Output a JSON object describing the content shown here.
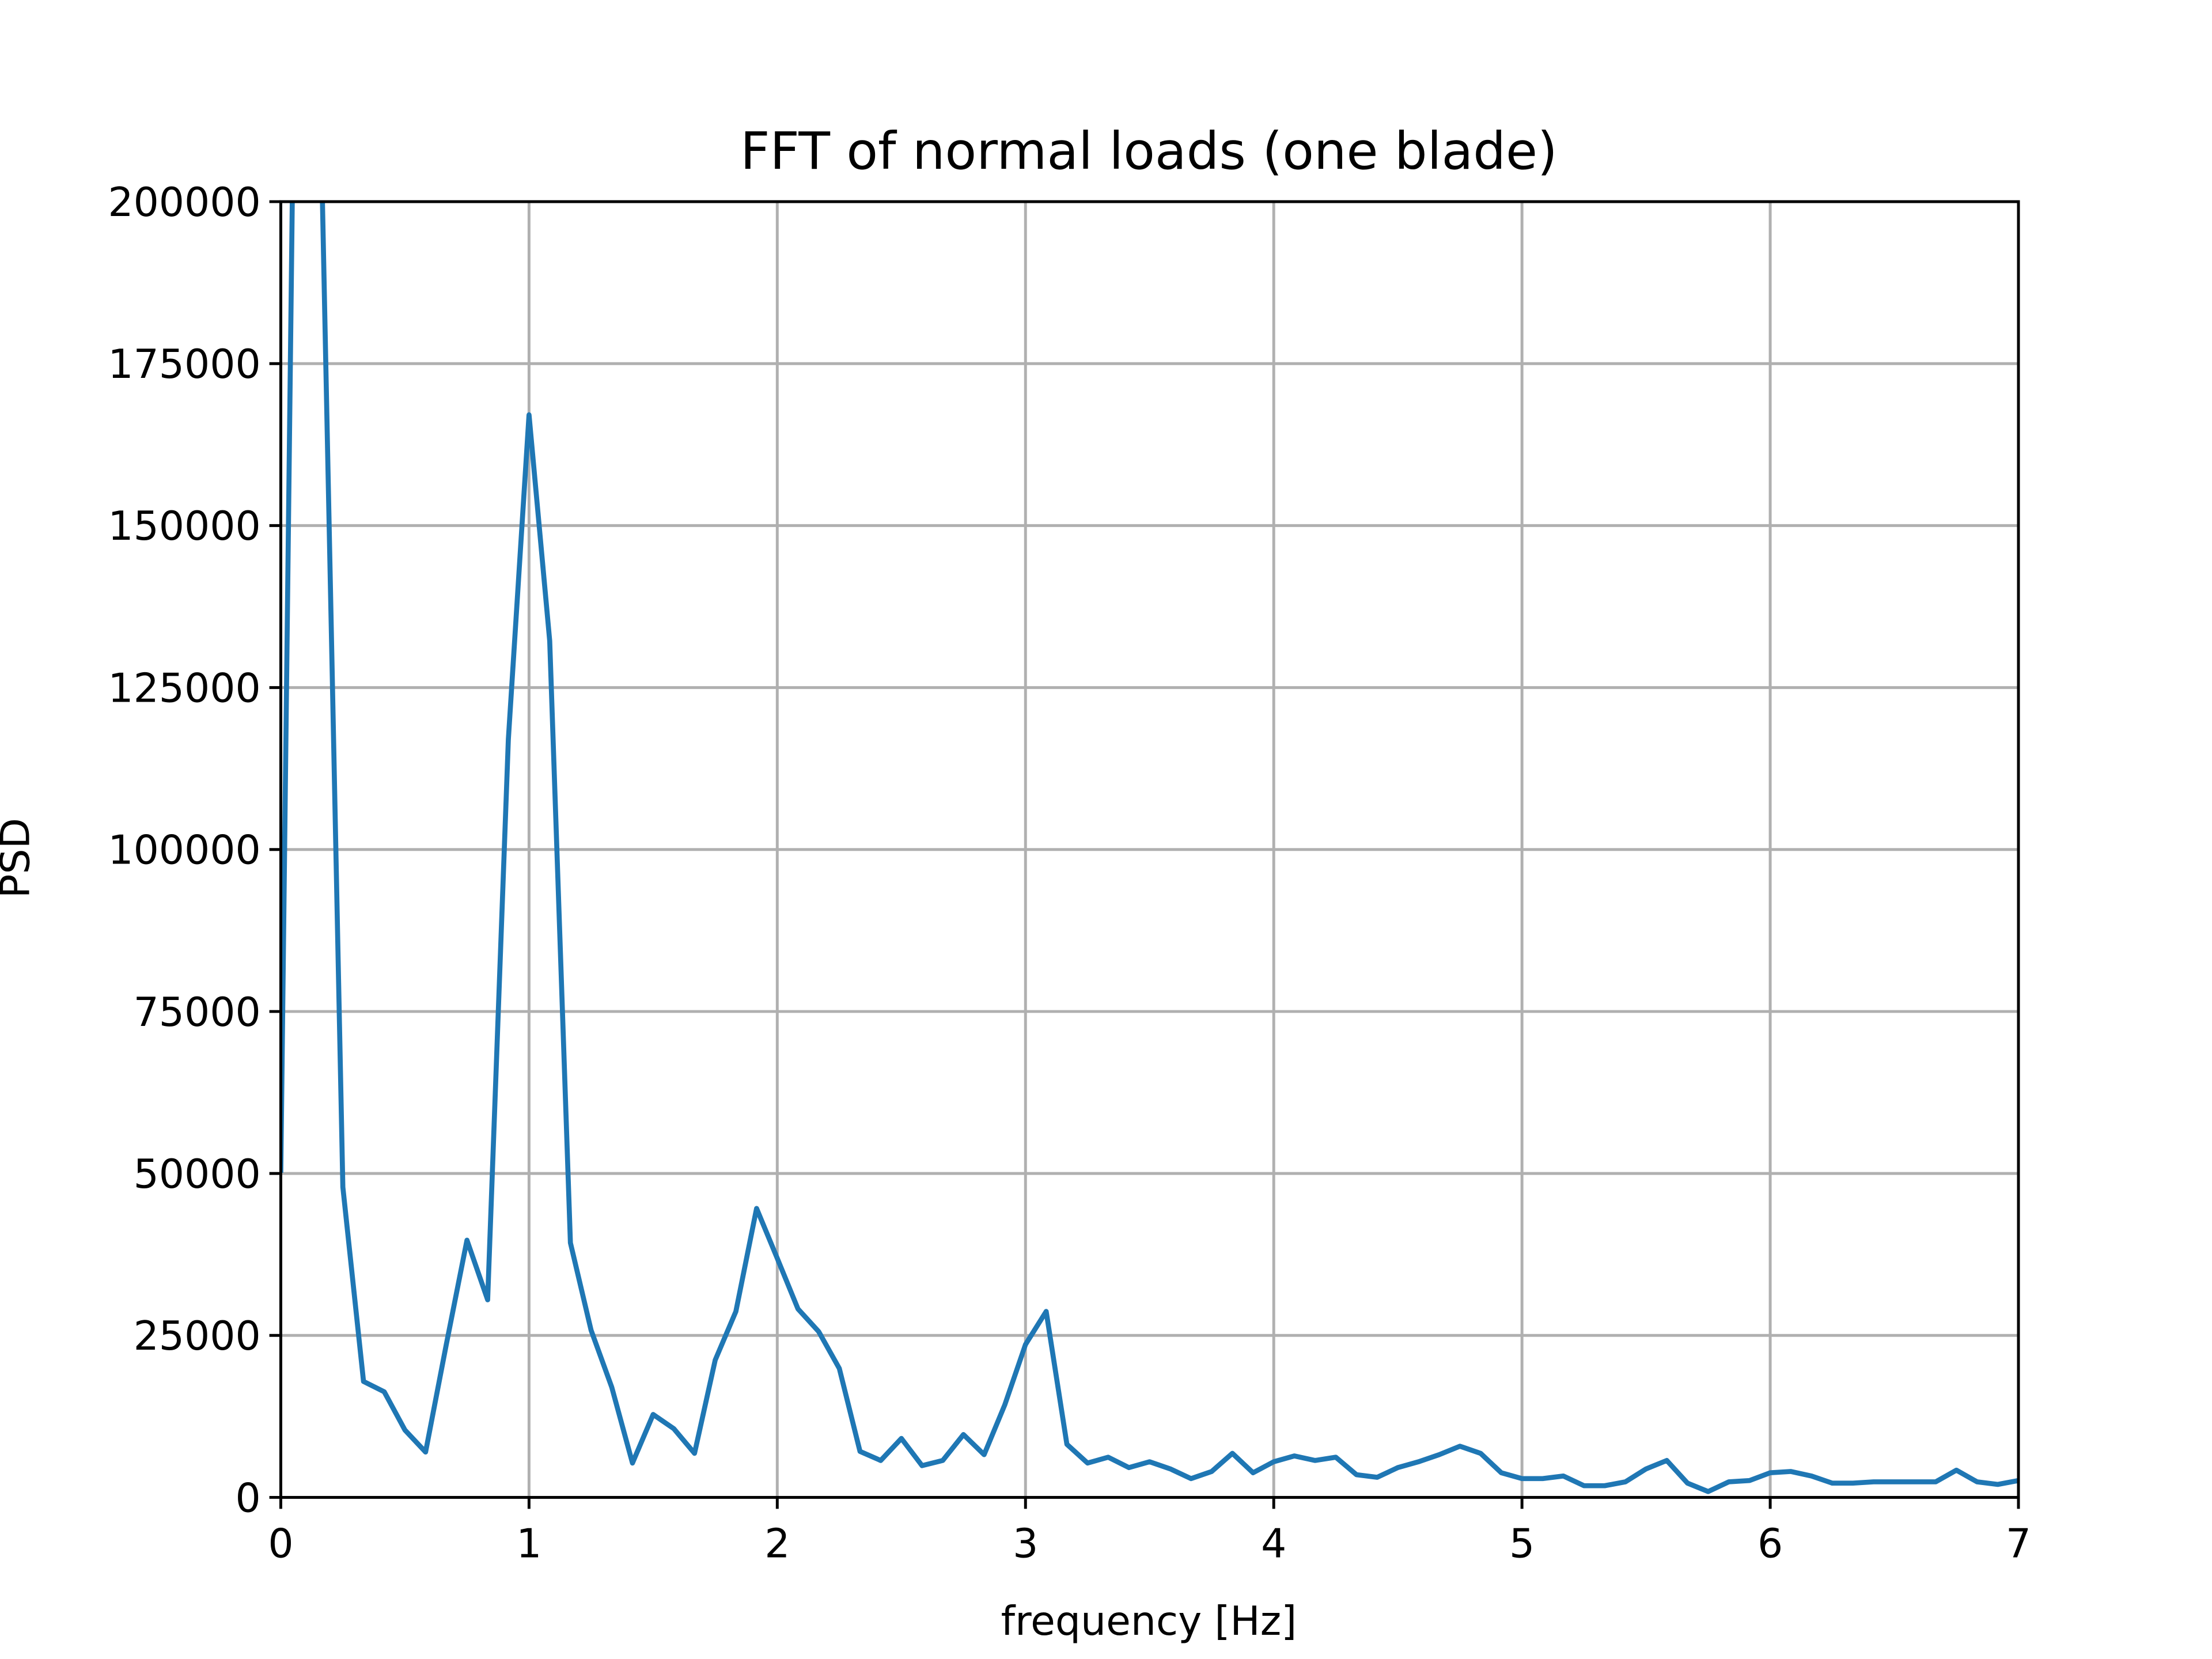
{
  "chart_data": {
    "type": "line",
    "title": "FFT of normal loads (one blade)",
    "xlabel": "frequency [Hz]",
    "ylabel": "PSD",
    "x": [
      0,
      0.0833,
      0.1667,
      0.25,
      0.3333,
      0.4167,
      0.5,
      0.5833,
      0.6667,
      0.75,
      0.8333,
      0.9167,
      1,
      1.0833,
      1.1667,
      1.25,
      1.3333,
      1.4167,
      1.5,
      1.5833,
      1.6667,
      1.75,
      1.8333,
      1.9167,
      2,
      2.0833,
      2.1667,
      2.25,
      2.3333,
      2.4167,
      2.5,
      2.5833,
      2.6667,
      2.75,
      2.8333,
      2.9167,
      3,
      3.0833,
      3.1667,
      3.25,
      3.3333,
      3.4167,
      3.5,
      3.5833,
      3.6667,
      3.75,
      3.8333,
      3.9167,
      4,
      4.0833,
      4.1667,
      4.25,
      4.3333,
      4.4167,
      4.5,
      4.5833,
      4.6667,
      4.75,
      4.8333,
      4.9167,
      5,
      5.0833,
      5.1667,
      5.25,
      5.3333,
      5.4167,
      5.5,
      5.5833,
      5.6667,
      5.75,
      5.8333,
      5.9167,
      6,
      6.0833,
      6.1667,
      6.25,
      6.3333,
      6.4167,
      6.5,
      6.5833,
      6.6667,
      6.75,
      6.8333,
      6.9167,
      7
    ],
    "series": [
      {
        "name": "PSD",
        "color": "#1f77b4",
        "values": [
          50100,
          320000,
          202000,
          47900,
          17900,
          16300,
          10400,
          7000,
          23600,
          39700,
          30500,
          117000,
          167100,
          132200,
          39300,
          25800,
          17000,
          5300,
          12800,
          10600,
          6800,
          21200,
          28700,
          44600,
          36900,
          29100,
          25600,
          19900,
          7100,
          5700,
          9100,
          4900,
          5700,
          9700,
          6600,
          14300,
          23600,
          28700,
          8200,
          5300,
          6200,
          4600,
          5500,
          4400,
          2900,
          4000,
          6800,
          3800,
          5500,
          6400,
          5700,
          6200,
          3500,
          3100,
          4600,
          5500,
          6600,
          7900,
          6800,
          3800,
          2900,
          2900,
          3300,
          1800,
          1800,
          2400,
          4400,
          5700,
          2200,
          900,
          2400,
          2600,
          3800,
          4000,
          3300,
          2200,
          2200,
          2400,
          2400,
          2400,
          2400,
          4200,
          2400,
          2000,
          2600
        ]
      }
    ],
    "xlim": [
      0,
      7
    ],
    "xticks": [
      0,
      1,
      2,
      3,
      4,
      5,
      6,
      7
    ],
    "ylim": [
      0,
      200000
    ],
    "yticks": [
      0,
      25000,
      50000,
      75000,
      100000,
      125000,
      150000,
      175000,
      200000
    ],
    "grid": true
  }
}
